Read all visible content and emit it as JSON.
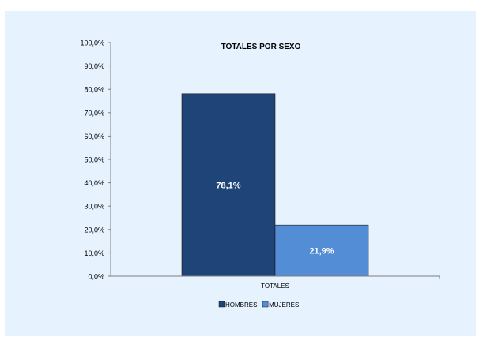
{
  "chart_data": {
    "type": "bar",
    "title": "TOTALES POR SEXO",
    "categories": [
      "TOTALES"
    ],
    "series": [
      {
        "name": "HOMBRES",
        "values": [
          78.1
        ],
        "label": "78,1%",
        "color": "#1f4478"
      },
      {
        "name": "MUJERES",
        "values": [
          21.9
        ],
        "label": "21,9%",
        "color": "#538dd5"
      }
    ],
    "ylim": [
      0,
      100
    ],
    "yticks": [
      "0,0%",
      "10,0%",
      "20,0%",
      "30,0%",
      "40,0%",
      "50,0%",
      "60,0%",
      "70,0%",
      "80,0%",
      "90,0%",
      "100,0%"
    ],
    "legend_position": "bottom",
    "grid": false
  },
  "colors": {
    "background": "#e6f2fd",
    "axis": "#7f7f7f",
    "data_label": "#ffffff"
  }
}
